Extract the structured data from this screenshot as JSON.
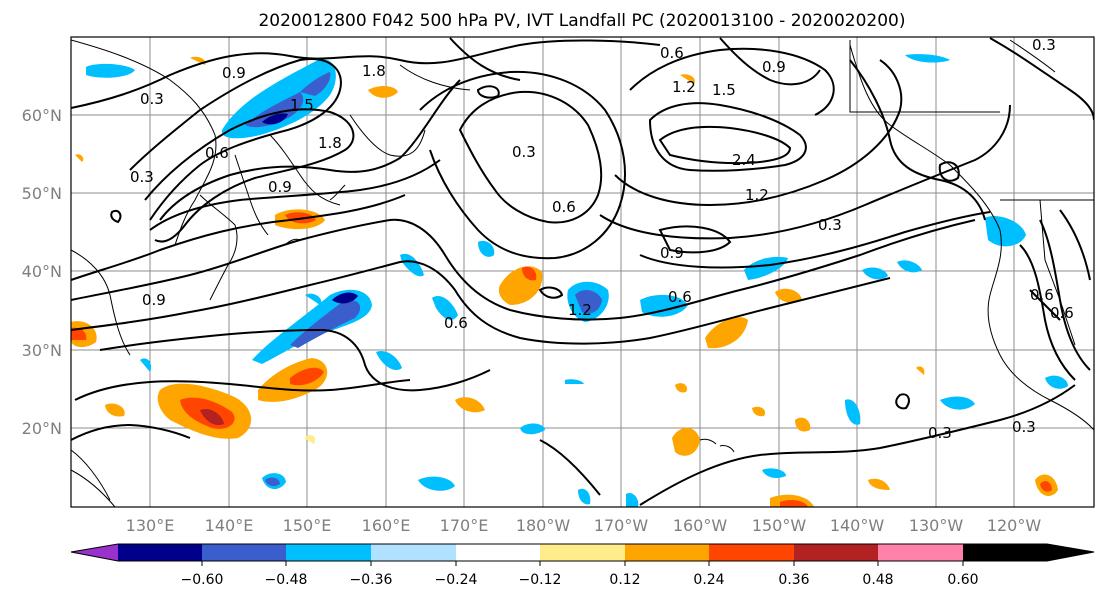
{
  "title": "2020012800 F042 500 hPa PV, IVT Landfall PC (2020013100 - 2020020200)",
  "lat_labels": [
    "60°N",
    "50°N",
    "40°N",
    "30°N",
    "20°N"
  ],
  "lon_labels": [
    "130°E",
    "140°E",
    "150°E",
    "160°E",
    "170°E",
    "180°W",
    "170°W",
    "160°W",
    "150°W",
    "140°W",
    "130°W",
    "120°W"
  ],
  "colorbar": {
    "ticks": [
      "−0.60",
      "−0.48",
      "−0.36",
      "−0.24",
      "−0.12",
      "0.12",
      "0.24",
      "0.36",
      "0.48",
      "0.60"
    ],
    "colors": [
      "#9932cc",
      "#00008b",
      "#3a5fcd",
      "#00bfff",
      "#b0e2ff",
      "#ffffff",
      "#ffec8b",
      "#ffa500",
      "#ff4500",
      "#b22222",
      "#ff82ab"
    ]
  },
  "contour_labels": [
    "0.9",
    "0.3",
    "1.8",
    "1.5",
    "0.6",
    "1.8",
    "0.3",
    "0.9",
    "0.6",
    "0.3",
    "0.3",
    "1.2",
    "2.4",
    "1.5",
    "0.9",
    "0.6",
    "1.2",
    "0.3",
    "0.9",
    "0.6",
    "0.9",
    "0.6",
    "1.2",
    "0.3",
    "0.3",
    "0.6",
    "0.6"
  ]
}
